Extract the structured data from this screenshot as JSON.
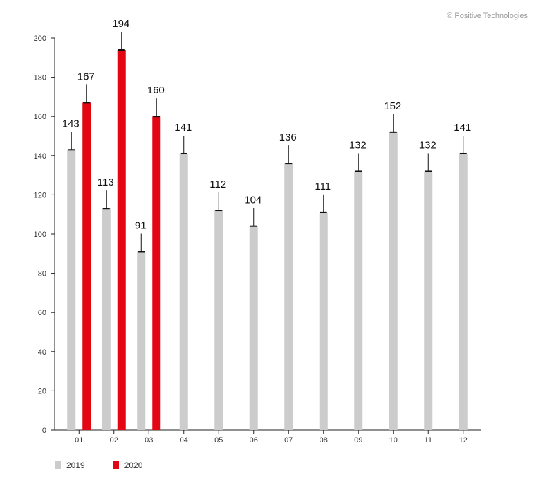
{
  "copyright": "© Positive Technologies",
  "colors": {
    "series_2019": "#cccccc",
    "series_2020": "#e30613",
    "axis": "#222222"
  },
  "chart_data": {
    "type": "bar",
    "categories": [
      "01",
      "02",
      "03",
      "04",
      "05",
      "06",
      "07",
      "08",
      "09",
      "10",
      "11",
      "12"
    ],
    "series": [
      {
        "name": "2019",
        "values": [
          143,
          113,
          91,
          141,
          112,
          104,
          136,
          111,
          132,
          152,
          132,
          141
        ]
      },
      {
        "name": "2020",
        "values": [
          167,
          194,
          160,
          null,
          null,
          null,
          null,
          null,
          null,
          null,
          null,
          null
        ]
      }
    ],
    "ylim": [
      0,
      200
    ],
    "yticks": [
      0,
      20,
      40,
      60,
      80,
      100,
      120,
      140,
      160,
      180,
      200
    ],
    "legend": "bottom-left",
    "grid": false
  }
}
